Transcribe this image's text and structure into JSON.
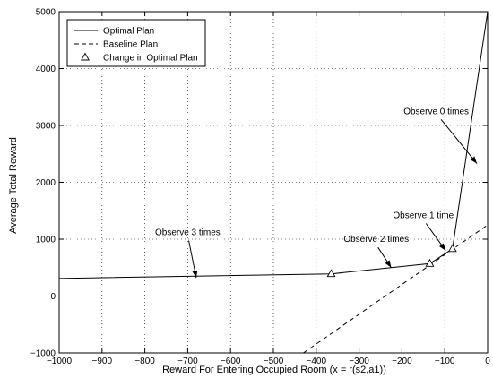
{
  "chart_data": {
    "type": "line",
    "title": "",
    "xlabel": "Reward For Entering Occupied Room (x = r(s2,a1))",
    "ylabel": "Average Total Reward",
    "xlim": [
      -1000,
      0
    ],
    "ylim": [
      -1000,
      5000
    ],
    "x_ticks": [
      -1000,
      -900,
      -800,
      -700,
      -600,
      -500,
      -400,
      -300,
      -200,
      -100,
      0
    ],
    "x_tick_labels": [
      "−1000",
      "−900",
      "−800",
      "−700",
      "−600",
      "−500",
      "−400",
      "−300",
      "−200",
      "−100",
      "0"
    ],
    "y_ticks": [
      -1000,
      0,
      1000,
      2000,
      3000,
      4000,
      5000
    ],
    "y_tick_labels": [
      "−1000",
      "0",
      "1000",
      "2000",
      "3000",
      "4000",
      "5000"
    ],
    "grid": true,
    "legend_position": "top-left",
    "series": [
      {
        "name": "Optimal Plan",
        "style": "solid",
        "color": "#000000",
        "x": [
          -1000,
          -365,
          -135,
          -82,
          0
        ],
        "y": [
          310,
          390,
          570,
          830,
          5000
        ]
      },
      {
        "name": "Baseline Plan",
        "style": "dashed",
        "color": "#000000",
        "x": [
          -430,
          0
        ],
        "y": [
          -1000,
          1250
        ]
      },
      {
        "name": "Change in Optimal Plan",
        "style": "marker-triangle",
        "color": "#000000",
        "x": [
          -365,
          -135,
          -82
        ],
        "y": [
          390,
          570,
          830
        ]
      }
    ],
    "annotations": [
      {
        "text": "Observe 0 times",
        "x": -120,
        "y": 3200,
        "arrow_to": [
          -25,
          2330
        ]
      },
      {
        "text": "Observe 1 time",
        "x": -150,
        "y": 1370,
        "arrow_to": [
          -98,
          800
        ]
      },
      {
        "text": "Observe 2 times",
        "x": -260,
        "y": 950,
        "arrow_to": [
          -225,
          500
        ]
      },
      {
        "text": "Observe 3 times",
        "x": -700,
        "y": 1070,
        "arrow_to": [
          -680,
          320
        ]
      }
    ]
  }
}
